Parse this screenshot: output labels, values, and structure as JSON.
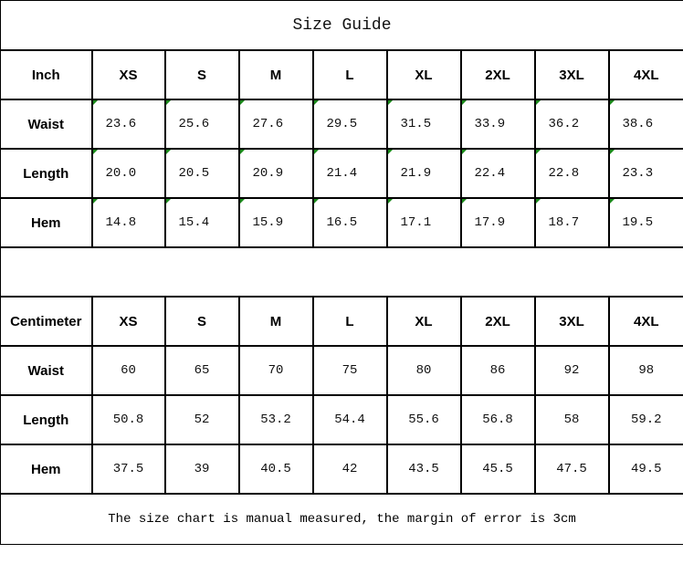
{
  "title": "Size Guide",
  "sizes": [
    "XS",
    "S",
    "M",
    "L",
    "XL",
    "2XL",
    "3XL",
    "4XL"
  ],
  "inch": {
    "label": "Inch",
    "rows": [
      {
        "label": "Waist",
        "values": [
          "23.6",
          "25.6",
          "27.6",
          "29.5",
          "31.5",
          "33.9",
          "36.2",
          "38.6"
        ]
      },
      {
        "label": "Length",
        "values": [
          "20.0",
          "20.5",
          "20.9",
          "21.4",
          "21.9",
          "22.4",
          "22.8",
          "23.3"
        ]
      },
      {
        "label": "Hem",
        "values": [
          "14.8",
          "15.4",
          "15.9",
          "16.5",
          "17.1",
          "17.9",
          "18.7",
          "19.5"
        ]
      }
    ]
  },
  "cm": {
    "label": "Centimeter",
    "rows": [
      {
        "label": "Waist",
        "values": [
          "60",
          "65",
          "70",
          "75",
          "80",
          "86",
          "92",
          "98"
        ]
      },
      {
        "label": "Length",
        "values": [
          "50.8",
          "52",
          "53.2",
          "54.4",
          "55.6",
          "56.8",
          "58",
          "59.2"
        ]
      },
      {
        "label": "Hem",
        "values": [
          "37.5",
          "39",
          "40.5",
          "42",
          "43.5",
          "45.5",
          "47.5",
          "49.5"
        ]
      }
    ]
  },
  "footer": "The size chart is manual measured, the margin of error is 3cm",
  "colors": {
    "border": "#000000",
    "text_marker": "#1a8a1a"
  }
}
